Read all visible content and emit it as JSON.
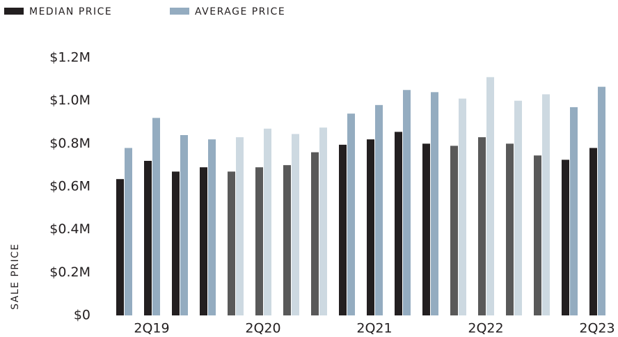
{
  "chart_data": {
    "type": "bar",
    "y_label": "SALE PRICE",
    "categories": [
      null,
      "2Q19",
      null,
      null,
      null,
      "2Q20",
      null,
      null,
      null,
      "2Q21",
      null,
      null,
      null,
      "2Q22",
      null,
      null,
      null,
      "2Q23"
    ],
    "series": [
      {
        "name": "MEDIAN PRICE",
        "color": "#231f20",
        "colors": [
          "#231f20",
          "#231f20",
          "#231f20",
          "#231f20",
          "#595959",
          "#595959",
          "#595959",
          "#595959",
          "#231f20",
          "#231f20",
          "#231f20",
          "#231f20",
          "#595959",
          "#595959",
          "#595959",
          "#595959",
          "#231f20",
          "#231f20"
        ],
        "values": [
          635000,
          720000,
          670000,
          690000,
          670000,
          690000,
          700000,
          760000,
          795000,
          820000,
          855000,
          800000,
          790000,
          830000,
          800000,
          745000,
          725000,
          780000
        ]
      },
      {
        "name": "AVERAGE PRICE",
        "color": "#94acc0",
        "colors": [
          "#94acc0",
          "#94acc0",
          "#94acc0",
          "#94acc0",
          "#cdd9e1",
          "#cdd9e1",
          "#cdd9e1",
          "#cdd9e1",
          "#94acc0",
          "#94acc0",
          "#94acc0",
          "#94acc0",
          "#cdd9e1",
          "#cdd9e1",
          "#cdd9e1",
          "#cdd9e1",
          "#94acc0",
          "#94acc0"
        ],
        "values": [
          780000,
          920000,
          840000,
          820000,
          830000,
          870000,
          845000,
          875000,
          940000,
          980000,
          1050000,
          1040000,
          1010000,
          1110000,
          1000000,
          1030000,
          970000,
          1065000
        ]
      }
    ],
    "ylim": [
      0,
      1200000
    ],
    "yticks": [
      {
        "value": 0,
        "label": "$0"
      },
      {
        "value": 200000,
        "label": "$0.2M"
      },
      {
        "value": 400000,
        "label": "$0.4M"
      },
      {
        "value": 600000,
        "label": "$0.6M"
      },
      {
        "value": 800000,
        "label": "$0.8M"
      },
      {
        "value": 1000000,
        "label": "$1.0M"
      },
      {
        "value": 1200000,
        "label": "$1.2M"
      }
    ],
    "grid": false,
    "legend": "top-left"
  }
}
